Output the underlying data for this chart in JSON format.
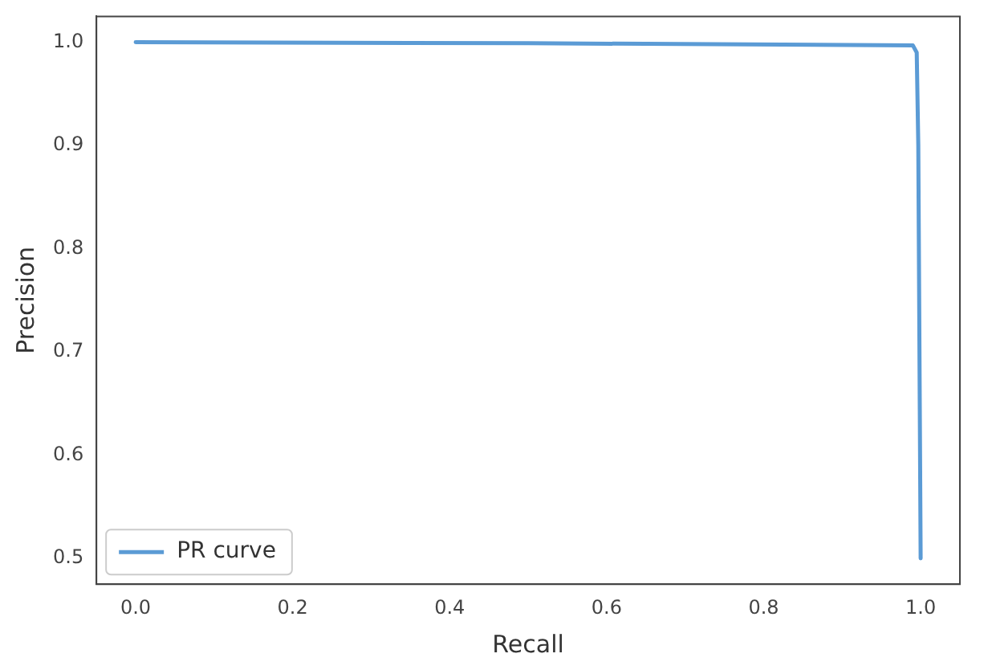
{
  "chart_data": {
    "type": "line",
    "xlabel": "Recall",
    "ylabel": "Precision",
    "xlim": [
      -0.05,
      1.05
    ],
    "xticks": [
      {
        "value": 0,
        "label": "0.0"
      },
      0.2,
      0.4,
      0.6,
      0.8,
      {
        "value": 1,
        "label": "1.0"
      }
    ],
    "ylim": [
      0.475,
      1.025
    ],
    "yticks": [
      {
        "value": 0.5,
        "label": "0.5"
      },
      0.6,
      0.7,
      0.8,
      0.9,
      {
        "value": 1,
        "label": "1.0"
      }
    ],
    "series": [
      {
        "name": "PR curve",
        "color": "#5b9bd5",
        "x": [
          0.0,
          0.5,
          0.99,
          0.995,
          0.997,
          1.0
        ],
        "values": [
          1.0,
          0.999,
          0.997,
          0.99,
          0.9,
          0.5
        ]
      }
    ],
    "legend": "bottom left",
    "grid": false,
    "marker": "none",
    "line_style": "solid"
  }
}
